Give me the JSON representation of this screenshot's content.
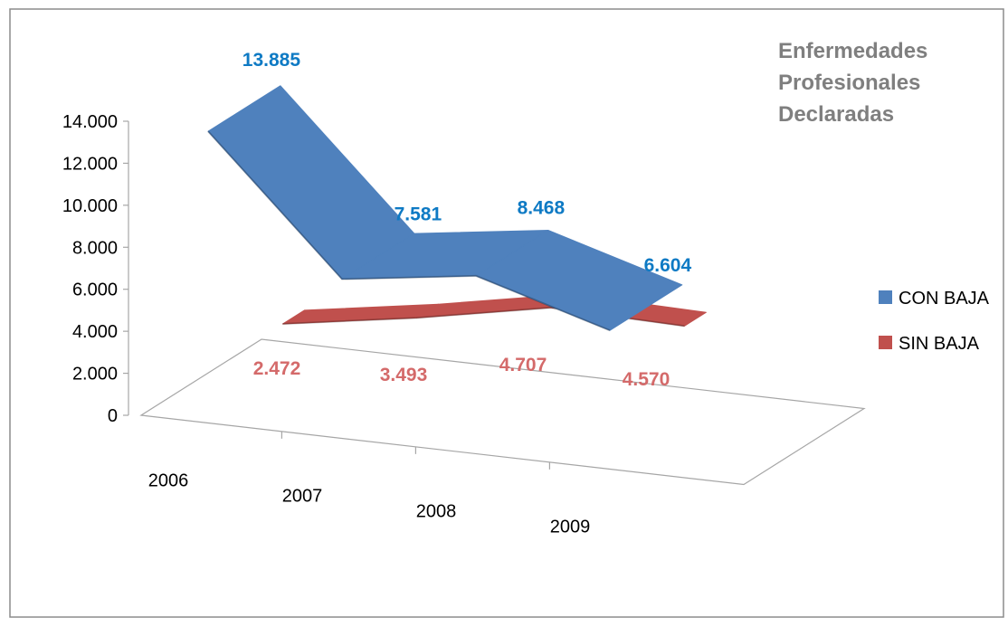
{
  "chart_data": {
    "type": "line",
    "title_lines": [
      "Enfermedades",
      "Profesionales",
      "Declaradas"
    ],
    "categories": [
      "2006",
      "2007",
      "2008",
      "2009"
    ],
    "y_ticks": [
      "0",
      "2.000",
      "4.000",
      "6.000",
      "8.000",
      "10.000",
      "12.000",
      "14.000"
    ],
    "ylim": [
      0,
      14000
    ],
    "grid": false,
    "legend_position": "right",
    "series": [
      {
        "name": "CON BAJA",
        "values": [
          13885,
          7581,
          8468,
          6604
        ],
        "labels": [
          "13.885",
          "7.581",
          "8.468",
          "6.604"
        ],
        "color": "#4f81bd",
        "label_color": "#0e7ac4"
      },
      {
        "name": "SIN BAJA",
        "values": [
          2472,
          3493,
          4707,
          4570
        ],
        "labels": [
          "2.472",
          "3.493",
          "4.707",
          "4.570"
        ],
        "color": "#c0504d",
        "label_color": "#d46a6a"
      }
    ],
    "title_color": "#7f7f7f"
  }
}
